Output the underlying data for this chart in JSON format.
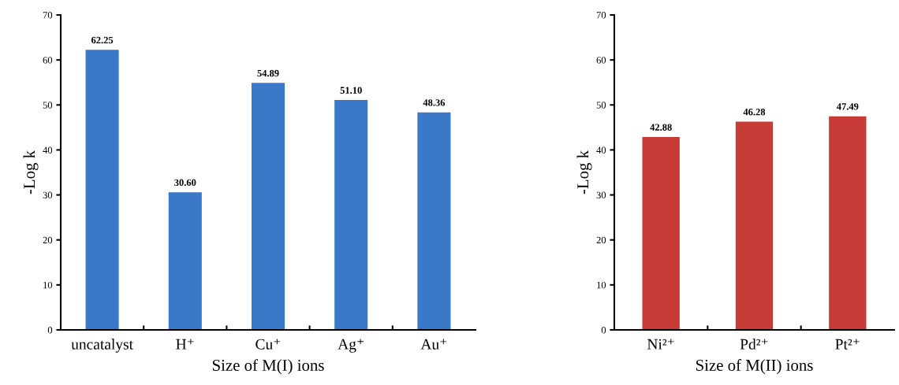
{
  "chart_data": [
    {
      "type": "bar",
      "xlabel": "Size of M(I) ions",
      "ylabel": "-Log k",
      "categories": [
        "uncatalyst",
        "H⁺",
        "Cu⁺",
        "Ag⁺",
        "Au⁺"
      ],
      "values": [
        62.25,
        30.6,
        54.89,
        51.1,
        48.36
      ],
      "value_labels": [
        "62.25",
        "30.60",
        "54.89",
        "51.10",
        "48.36"
      ],
      "color": "#3a78c8",
      "ylim": [
        0,
        70
      ],
      "yticks": [
        0,
        10,
        20,
        30,
        40,
        50,
        60,
        70
      ],
      "grid": false
    },
    {
      "type": "bar",
      "xlabel": "Size of M(II) ions",
      "ylabel": "-Log k",
      "categories": [
        "Ni²⁺",
        "Pd²⁺",
        "Pt²⁺"
      ],
      "values": [
        42.88,
        46.28,
        47.49
      ],
      "value_labels": [
        "42.88",
        "46.28",
        "47.49"
      ],
      "color": "#c83a36",
      "ylim": [
        0,
        70
      ],
      "yticks": [
        0,
        10,
        20,
        30,
        40,
        50,
        60,
        70
      ],
      "grid": false
    }
  ]
}
